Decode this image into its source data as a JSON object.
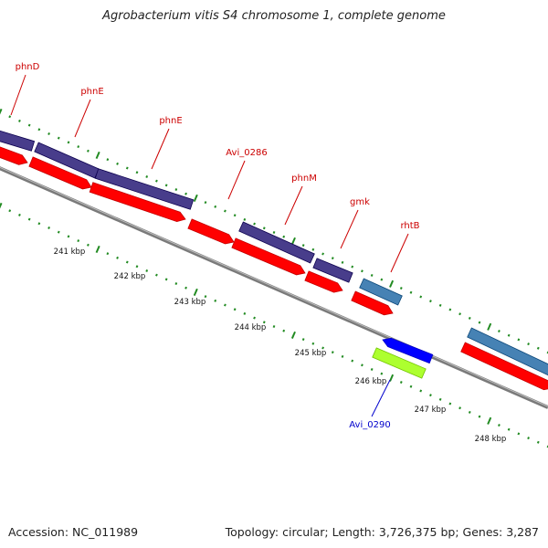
{
  "title": "Agrobacterium vitis S4 chromosome 1, complete genome",
  "footer": {
    "accession": "Accession: NC_011989",
    "summary": "Topology: circular; Length: 3,726,375 bp; Genes: 3,287"
  },
  "colors": {
    "gene_outer": "#483d8b",
    "cds": "#ff0000",
    "gene_lightblue": "#4682b4",
    "gene_minus": "#0000ff",
    "gene_minus_green": "#adff2f",
    "label_red": "#cc0000",
    "label_blue": "#0000cc",
    "tick": "#228b22",
    "backbone": "#808080"
  },
  "axis_labels": [
    "241 kbp",
    "242 kbp",
    "243 kbp",
    "244 kbp",
    "245 kbp",
    "246 kbp",
    "247 kbp",
    "248 kbp"
  ],
  "gene_labels": [
    {
      "name": "phnD",
      "color": "red"
    },
    {
      "name": "phnE",
      "color": "red"
    },
    {
      "name": "phnE",
      "color": "red"
    },
    {
      "name": "Avi_0286",
      "color": "red"
    },
    {
      "name": "phnM",
      "color": "red"
    },
    {
      "name": "gmk",
      "color": "red"
    },
    {
      "name": "rhtB",
      "color": "red"
    },
    {
      "name": "Avi_0290",
      "color": "blue"
    }
  ]
}
